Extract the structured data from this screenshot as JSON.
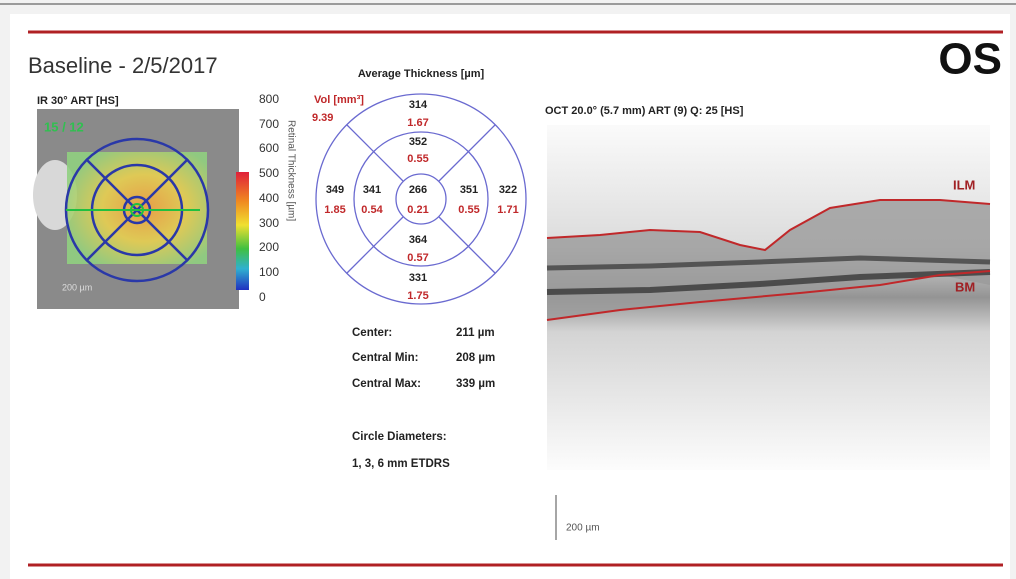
{
  "header": {
    "title": "Baseline - 2/5/2017",
    "eye": "OS"
  },
  "ir_image": {
    "label": "IR 30° ART [HS]",
    "overlay": "15 / 12",
    "scale": "200 µm",
    "colorbar_labels": [
      "800",
      "700",
      "600",
      "500",
      "400",
      "300",
      "200",
      "100",
      "0"
    ],
    "colorbar_title": "Retinal Thickness [µm]"
  },
  "thickness_map": {
    "title": "Average Thickness [µm]",
    "volume_label": "Vol [mm³]",
    "volume": "9.39",
    "sectors": [
      {
        "thickness": "314",
        "volume": "1.67"
      },
      {
        "thickness": "352",
        "volume": "0.55"
      },
      {
        "thickness": "349",
        "volume": "1.85"
      },
      {
        "thickness": "341",
        "volume": "0.54"
      },
      {
        "thickness": "266",
        "volume": "0.21"
      },
      {
        "thickness": "351",
        "volume": "0.55"
      },
      {
        "thickness": "322",
        "volume": "1.71"
      },
      {
        "thickness": "364",
        "volume": "0.57"
      },
      {
        "thickness": "331",
        "volume": "1.75"
      }
    ]
  },
  "stats": [
    {
      "label": "Center:",
      "value": "211 µm"
    },
    {
      "label": "Central Min:",
      "value": "208 µm"
    },
    {
      "label": "Central Max:",
      "value": "339 µm"
    }
  ],
  "circles": {
    "label": "Circle Diameters:",
    "value": "1, 3, 6 mm ETDRS"
  },
  "oct_image": {
    "label": "OCT 20.0° (5.7 mm) ART (9) Q: 25 [HS]",
    "ilm": "ILM",
    "bm": "BM",
    "scale": "200 µm"
  }
}
